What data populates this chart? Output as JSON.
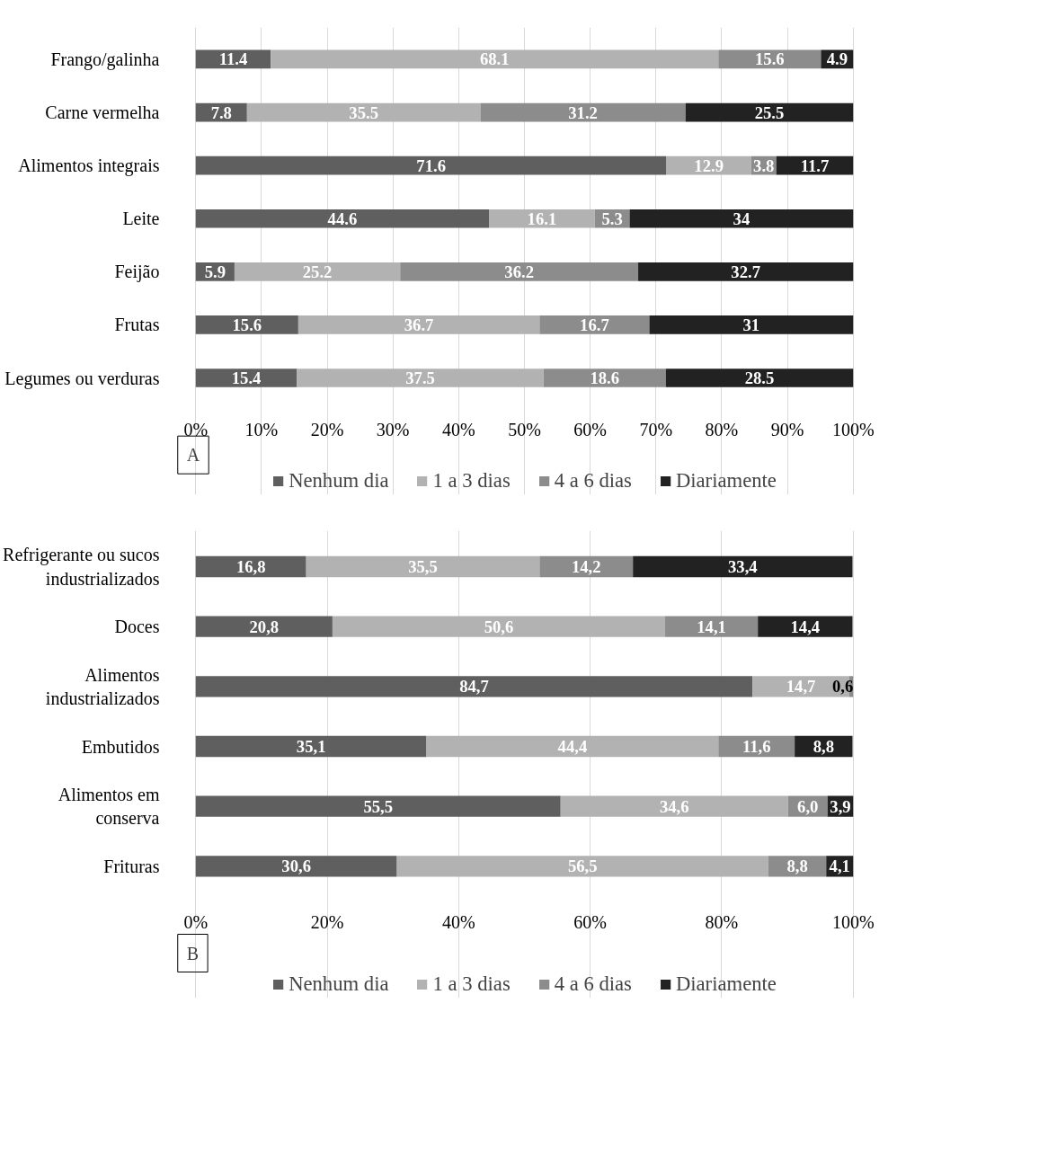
{
  "chart_data": [
    {
      "type": "bar",
      "orientation": "horizontal",
      "stacked": true,
      "annotations": [
        "A"
      ],
      "legend": "bottom",
      "grid": "x",
      "categories": [
        "Frango/galinha",
        "Carne vermelha",
        "Alimentos integrais",
        "Leite",
        "Feijão",
        "Frutas",
        "Legumes ou verduras"
      ],
      "xlim": [
        0,
        100
      ],
      "xticks": [
        {
          "value": 0,
          "label": "0%"
        },
        {
          "value": 10,
          "label": "10%"
        },
        {
          "value": 20,
          "label": "20%"
        },
        {
          "value": 30,
          "label": "30%"
        },
        {
          "value": 40,
          "label": "40%"
        },
        {
          "value": 50,
          "label": "50%"
        },
        {
          "value": 60,
          "label": "60%"
        },
        {
          "value": 70,
          "label": "70%"
        },
        {
          "value": 80,
          "label": "80%"
        },
        {
          "value": 90,
          "label": "90%"
        },
        {
          "value": 100,
          "label": "100%"
        }
      ],
      "series": [
        {
          "name": "Nenhum dia",
          "color": "#5f5f5f",
          "values": [
            11.4,
            7.8,
            71.6,
            44.6,
            5.9,
            15.6,
            15.4
          ],
          "value_labels": [
            "11.4",
            "7.8",
            "71.6",
            "44.6",
            "5.9",
            "15.6",
            "15.4"
          ]
        },
        {
          "name": "1 a 3 dias",
          "color": "#b2b2b2",
          "values": [
            68.1,
            35.5,
            12.9,
            16.1,
            25.2,
            36.7,
            37.5
          ],
          "value_labels": [
            "68.1",
            "35.5",
            "12.9",
            "16.1",
            "25.2",
            "36.7",
            "37.5"
          ]
        },
        {
          "name": "4 a 6 dias",
          "color": "#8c8c8c",
          "values": [
            15.6,
            31.2,
            3.8,
            5.3,
            36.2,
            16.7,
            18.6
          ],
          "value_labels": [
            "15.6",
            "31.2",
            "3.8",
            "5.3",
            "36.2",
            "16.7",
            "18.6"
          ]
        },
        {
          "name": "Diariamente",
          "color": "#222222",
          "values": [
            4.9,
            25.5,
            11.7,
            34,
            32.7,
            31,
            28.5
          ],
          "value_labels": [
            "4.9",
            "25.5",
            "11.7",
            "34",
            "32.7",
            "31",
            "28.5"
          ]
        }
      ]
    },
    {
      "type": "bar",
      "orientation": "horizontal",
      "stacked": true,
      "annotations": [
        "B"
      ],
      "legend": "bottom",
      "grid": "x",
      "categories": [
        "Refrigerante ou sucos\nindustrializados",
        "Doces",
        "Alimentos\nindustrializados",
        "Embutidos",
        "Alimentos em\nconserva",
        "Frituras"
      ],
      "xlim": [
        0,
        100
      ],
      "xticks": [
        {
          "value": 0,
          "label": "0%"
        },
        {
          "value": 20,
          "label": "20%"
        },
        {
          "value": 40,
          "label": "40%"
        },
        {
          "value": 60,
          "label": "60%"
        },
        {
          "value": 80,
          "label": "80%"
        },
        {
          "value": 100,
          "label": "100%"
        }
      ],
      "series": [
        {
          "name": "Nenhum dia",
          "color": "#5f5f5f",
          "values": [
            16.8,
            20.8,
            84.7,
            35.1,
            55.5,
            30.6
          ],
          "value_labels": [
            "16,8",
            "20,8",
            "84,7",
            "35,1",
            "55,5",
            "30,6"
          ]
        },
        {
          "name": "1 a 3 dias",
          "color": "#b2b2b2",
          "values": [
            35.5,
            50.6,
            14.7,
            44.4,
            34.6,
            56.5
          ],
          "value_labels": [
            "35,5",
            "50,6",
            "14,7",
            "44,4",
            "34,6",
            "56,5"
          ]
        },
        {
          "name": "4 a 6 dias",
          "color": "#8c8c8c",
          "values": [
            14.2,
            14.1,
            0.6,
            11.6,
            6.0,
            8.8
          ],
          "value_labels": [
            "14,2",
            "14,1",
            "0,6",
            "11,6",
            "6,0",
            "8,8"
          ]
        },
        {
          "name": "Diariamente",
          "color": "#222222",
          "values": [
            33.4,
            14.4,
            null,
            8.8,
            3.9,
            4.1
          ],
          "value_labels": [
            "33,4",
            "14,4",
            null,
            "8,8",
            "3,9",
            "4,1"
          ]
        }
      ]
    }
  ]
}
